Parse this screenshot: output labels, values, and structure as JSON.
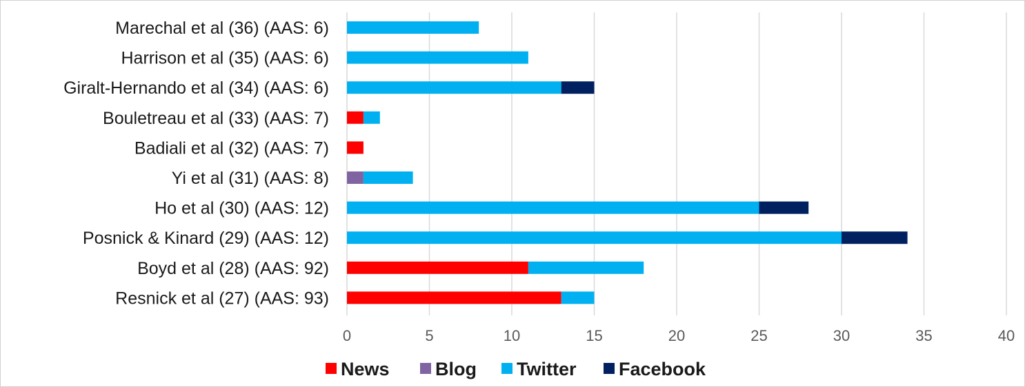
{
  "chart_data": {
    "type": "bar",
    "orientation": "horizontal",
    "stacked": true,
    "title": "",
    "xlabel": "",
    "ylabel": "",
    "xlim": [
      0,
      40
    ],
    "xticks": [
      0,
      5,
      10,
      15,
      20,
      25,
      30,
      35,
      40
    ],
    "grid": "vertical",
    "legend_position": "bottom",
    "categories": [
      "Marechal et al (36) (AAS: 6)",
      "Harrison et al (35) (AAS: 6)",
      "Giralt-Hernando et al (34) (AAS: 6)",
      "Bouletreau et al (33) (AAS: 7)",
      "Badiali et al (32) (AAS: 7)",
      "Yi et al (31) (AAS: 8)",
      "Ho et al (30) (AAS: 12)",
      "Posnick & Kinard (29) (AAS: 12)",
      "Boyd et al (28) (AAS: 92)",
      "Resnick et al (27) (AAS: 93)"
    ],
    "series": [
      {
        "name": "News",
        "color": "#ff0000",
        "values": [
          0,
          0,
          0,
          1,
          1,
          0,
          0,
          0,
          11,
          13
        ]
      },
      {
        "name": "Blog",
        "color": "#8064a2",
        "values": [
          0,
          0,
          0,
          0,
          0,
          1,
          0,
          0,
          0,
          0
        ]
      },
      {
        "name": "Twitter",
        "color": "#00b0f0",
        "values": [
          8,
          11,
          13,
          1,
          0,
          3,
          25,
          30,
          7,
          2
        ]
      },
      {
        "name": "Facebook",
        "color": "#002060",
        "values": [
          0,
          0,
          2,
          0,
          0,
          0,
          3,
          4,
          0,
          0
        ]
      }
    ]
  },
  "colors": {
    "grid": "#d9d9d9",
    "axis": "#d9d9d9"
  }
}
